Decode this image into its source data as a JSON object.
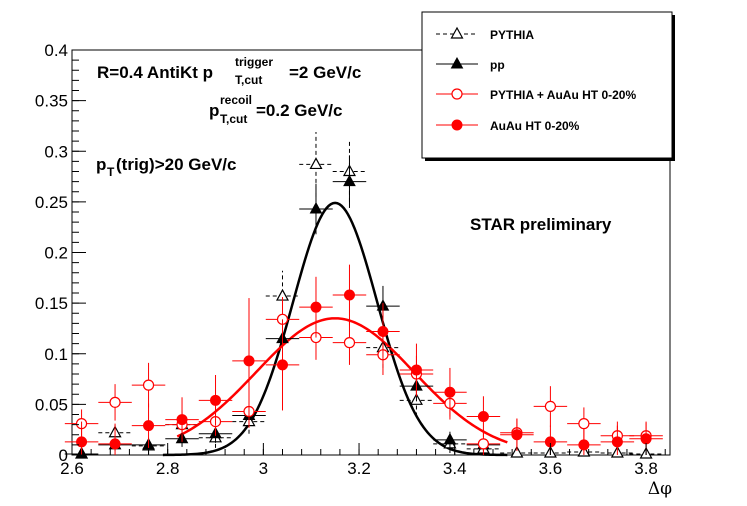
{
  "chart_data": {
    "type": "scatter",
    "xlabel": "Δφ",
    "ylabel": "",
    "xlim": [
      2.6,
      3.85
    ],
    "ylim": [
      0,
      0.4
    ],
    "x_ticks": [
      "2.6",
      "2.8",
      "3",
      "3.2",
      "3.4",
      "3.6",
      "3.8"
    ],
    "y_ticks": [
      "0",
      "0.05",
      "0.1",
      "0.15",
      "0.2",
      "0.25",
      "0.3",
      "0.35",
      "0.4"
    ],
    "annotations": {
      "line1_prefix": "R=0.4 AntiKt p",
      "line1_sup": "trigger",
      "line1_sub": "T,cut",
      "line1_suffix": "=2 GeV/c",
      "line2_prefix": "p",
      "line2_sup": "recoil",
      "line2_sub": "T,cut",
      "line2_suffix": "=0.2 GeV/c",
      "line3_prefix": "p",
      "line3_sub": "T",
      "line3_suffix": "(trig)>20 GeV/c",
      "star": "STAR preliminary"
    },
    "legend": [
      "PYTHIA",
      "pp",
      "PYTHIA + AuAu HT 0-20%",
      "AuAu HT 0-20%"
    ],
    "series": [
      {
        "name": "PYTHIA",
        "marker": "open-triangle",
        "color": "#000000",
        "dashed": true,
        "x": [
          2.62,
          2.69,
          2.76,
          2.83,
          2.9,
          2.97,
          3.04,
          3.11,
          3.18,
          3.25,
          3.32,
          3.39,
          3.46,
          3.53,
          3.6,
          3.67,
          3.74,
          3.8
        ],
        "y": [
          0.001,
          0.022,
          0.009,
          0.03,
          0.017,
          0.033,
          0.157,
          0.287,
          0.28,
          0.106,
          0.054,
          0.011,
          0.006,
          0.002,
          0.002,
          0.003,
          0.002,
          0.001
        ],
        "yerr": [
          0.006,
          0.01,
          0.008,
          0.013,
          0.01,
          0.012,
          0.025,
          0.032,
          0.03,
          0.02,
          0.016,
          0.009,
          0.006,
          0.004,
          0.004,
          0.004,
          0.004,
          0.004
        ]
      },
      {
        "name": "pp",
        "marker": "filled-triangle",
        "color": "#000000",
        "dashed": false,
        "x": [
          2.62,
          2.69,
          2.76,
          2.83,
          2.9,
          2.97,
          3.04,
          3.11,
          3.18,
          3.25,
          3.32,
          3.39,
          3.46
        ],
        "y": [
          0.001,
          0.01,
          0.01,
          0.016,
          0.021,
          0.039,
          0.115,
          0.243,
          0.27,
          0.147,
          0.068,
          0.015,
          0.01
        ],
        "yerr": [
          0.004,
          0.006,
          0.006,
          0.008,
          0.009,
          0.012,
          0.022,
          0.025,
          0.026,
          0.02,
          0.015,
          0.008,
          0.006
        ]
      },
      {
        "name": "PYTHIA + AuAu HT 0-20%",
        "marker": "open-circle",
        "color": "#ff0000",
        "dashed": false,
        "x": [
          2.62,
          2.69,
          2.76,
          2.83,
          2.9,
          2.97,
          3.04,
          3.11,
          3.18,
          3.25,
          3.32,
          3.39,
          3.46,
          3.53,
          3.6,
          3.67,
          3.74,
          3.8
        ],
        "y": [
          0.031,
          0.052,
          0.069,
          0.03,
          0.033,
          0.043,
          0.134,
          0.116,
          0.111,
          0.099,
          0.08,
          0.051,
          0.011,
          0.022,
          0.048,
          0.031,
          0.019,
          0.019
        ],
        "yerr": [
          0.014,
          0.018,
          0.022,
          0.014,
          0.014,
          0.016,
          0.022,
          0.022,
          0.022,
          0.02,
          0.018,
          0.016,
          0.012,
          0.014,
          0.02,
          0.016,
          0.014,
          0.014
        ]
      },
      {
        "name": "AuAu HT 0-20%",
        "marker": "filled-circle",
        "color": "#ff0000",
        "dashed": false,
        "x": [
          2.62,
          2.69,
          2.76,
          2.83,
          2.9,
          2.97,
          3.04,
          3.11,
          3.18,
          3.25,
          3.32,
          3.39,
          3.46,
          3.53,
          3.6,
          3.67,
          3.74,
          3.8
        ],
        "y": [
          0.013,
          0.011,
          0.029,
          0.035,
          0.054,
          0.093,
          0.089,
          0.146,
          0.158,
          0.122,
          0.084,
          0.062,
          0.038,
          0.02,
          0.013,
          0.01,
          0.013,
          0.016
        ],
        "yerr": [
          0.02,
          0.02,
          0.022,
          0.022,
          0.025,
          0.062,
          0.045,
          0.03,
          0.03,
          0.028,
          0.026,
          0.024,
          0.02,
          0.016,
          0.016,
          0.016,
          0.016,
          0.016
        ]
      }
    ],
    "fits": [
      {
        "name": "pp fit",
        "color": "#000000",
        "amp": 0.249,
        "mean": 3.15,
        "sigma": 0.088,
        "xrange": [
          2.79,
          3.51
        ]
      },
      {
        "name": "AuAu fit",
        "color": "#ff0000",
        "amp": 0.135,
        "mean": 3.15,
        "sigma": 0.165,
        "xrange": [
          2.82,
          3.51
        ]
      }
    ]
  }
}
